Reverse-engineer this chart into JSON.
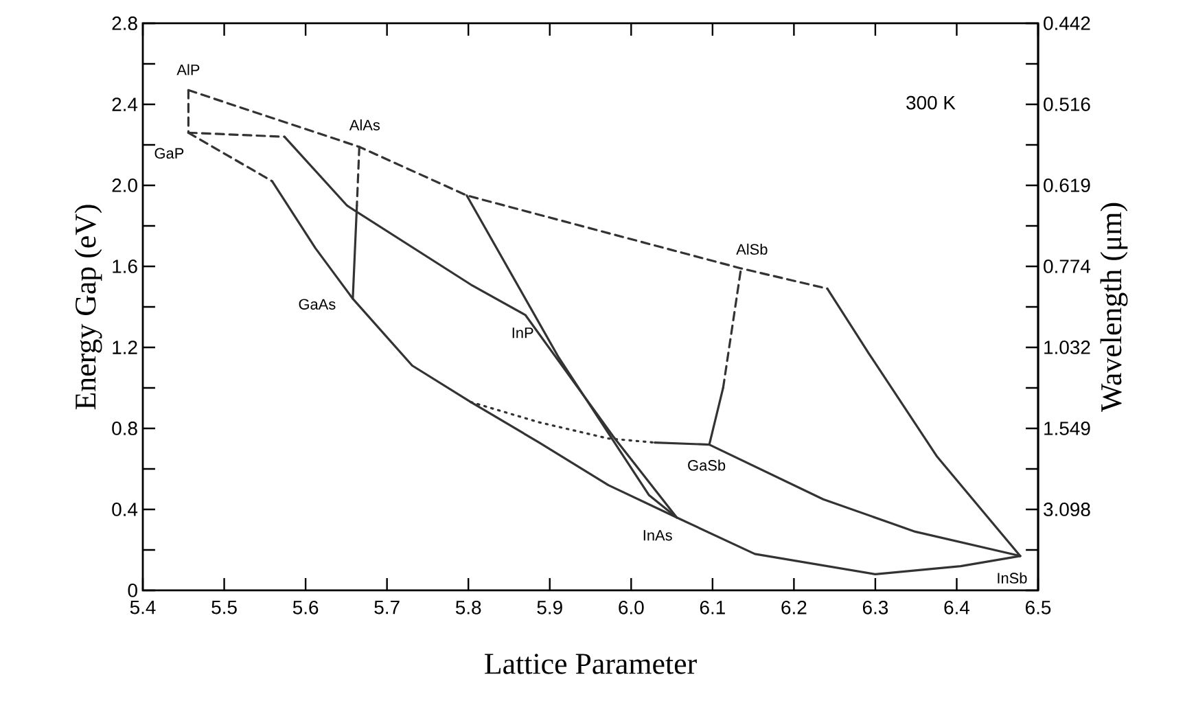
{
  "chart_data": {
    "type": "line",
    "xlabel": "Lattice Parameter",
    "ylabel": "Energy Gap (eV)",
    "y2label": "Wavelength (μm)",
    "xlim": [
      5.4,
      6.5
    ],
    "ylim": [
      0,
      2.8
    ],
    "xticks": [
      5.4,
      5.5,
      5.6,
      5.7,
      5.8,
      5.9,
      {
        "value": 6.0,
        "label": "6.0"
      },
      6.1,
      6.2,
      6.3,
      6.4,
      6.5
    ],
    "yticks": [
      0,
      {
        "value": 0.2,
        "label": null
      },
      0.4,
      {
        "value": 0.6,
        "label": null
      },
      0.8,
      {
        "value": 1.0,
        "label": null
      },
      1.2,
      {
        "value": 1.4,
        "label": null
      },
      1.6,
      {
        "value": 1.8,
        "label": null
      },
      {
        "value": 2.0,
        "label": "2.0"
      },
      {
        "value": 2.2,
        "label": null
      },
      2.4,
      {
        "value": 2.6,
        "label": null
      },
      2.8
    ],
    "y2_categories": [
      "0.442",
      null,
      "0.516",
      null,
      "0.619",
      null,
      "0.774",
      null,
      "1.032",
      null,
      "1.549",
      null,
      "3.098",
      null,
      null
    ],
    "series": [
      {
        "color": "#333333",
        "line_style": "dashed",
        "x": [
          5.456,
          5.456
        ],
        "values": [
          2.47,
          2.26
        ]
      },
      {
        "color": "#333333",
        "line_style": "dashed",
        "x": [
          5.456,
          5.666,
          5.798,
          6.135,
          6.241
        ],
        "values": [
          2.47,
          2.19,
          1.95,
          1.59,
          1.49
        ]
      },
      {
        "color": "#333333",
        "line_style": "dashed",
        "x": [
          5.456,
          5.574
        ],
        "values": [
          2.26,
          2.24
        ]
      },
      {
        "color": "#333333",
        "line_style": "solid",
        "x": [
          5.574,
          5.651,
          5.803,
          5.87,
          5.978,
          6.056
        ],
        "values": [
          2.24,
          1.9,
          1.51,
          1.36,
          0.76,
          0.36
        ]
      },
      {
        "color": "#333333",
        "line_style": "dashed",
        "x": [
          5.456,
          5.559
        ],
        "values": [
          2.26,
          2.02
        ]
      },
      {
        "color": "#333333",
        "line_style": "solid",
        "x": [
          5.559,
          5.612,
          5.658,
          5.731,
          5.803,
          5.887,
          5.972,
          6.056,
          6.152,
          6.3,
          6.405,
          6.478
        ],
        "values": [
          2.02,
          1.69,
          1.44,
          1.11,
          0.93,
          0.73,
          0.52,
          0.36,
          0.18,
          0.08,
          0.12,
          0.17
        ]
      },
      {
        "color": "#333333",
        "line_style": "dashed",
        "x": [
          5.666,
          5.663
        ],
        "values": [
          2.19,
          1.9
        ]
      },
      {
        "color": "#333333",
        "line_style": "solid",
        "x": [
          5.663,
          5.658
        ],
        "values": [
          1.9,
          1.44
        ]
      },
      {
        "color": "#333333",
        "line_style": "solid",
        "x": [
          5.798,
          5.911,
          6.022,
          6.056
        ],
        "values": [
          1.95,
          1.15,
          0.47,
          0.36
        ]
      },
      {
        "color": "#333333",
        "line_style": "dotted",
        "x": [
          5.803,
          5.887,
          5.972,
          6.029
        ],
        "values": [
          0.93,
          0.83,
          0.75,
          0.73
        ]
      },
      {
        "color": "#333333",
        "line_style": "solid",
        "x": [
          6.029,
          6.096,
          6.236,
          6.349,
          6.478
        ],
        "values": [
          0.73,
          0.72,
          0.45,
          0.29,
          0.17
        ]
      },
      {
        "color": "#333333",
        "line_style": "solid",
        "x": [
          6.096,
          6.113
        ],
        "values": [
          0.72,
          1.0
        ]
      },
      {
        "color": "#333333",
        "line_style": "dashed",
        "x": [
          6.113,
          6.135
        ],
        "values": [
          1.0,
          1.59
        ]
      },
      {
        "color": "#333333",
        "line_style": "solid",
        "x": [
          6.241,
          6.292,
          6.376,
          6.478
        ],
        "values": [
          1.49,
          1.17,
          0.66,
          0.17
        ]
      }
    ],
    "annotations": [
      {
        "text": "AlP",
        "x": 5.456,
        "y": 2.47
      },
      {
        "text": "GaP",
        "x": 5.456,
        "y": 2.26
      },
      {
        "text": "AlAs",
        "x": 5.666,
        "y": 2.19
      },
      {
        "text": "GaAs",
        "x": 5.658,
        "y": 1.44
      },
      {
        "text": "InP",
        "x": 5.87,
        "y": 1.36
      },
      {
        "text": "AlSb",
        "x": 6.135,
        "y": 1.59
      },
      {
        "text": "GaSb",
        "x": 6.096,
        "y": 0.72
      },
      {
        "text": "InAs",
        "x": 6.056,
        "y": 0.36
      },
      {
        "text": "InSb",
        "x": 6.478,
        "y": 0.17
      },
      "300 K"
    ]
  }
}
